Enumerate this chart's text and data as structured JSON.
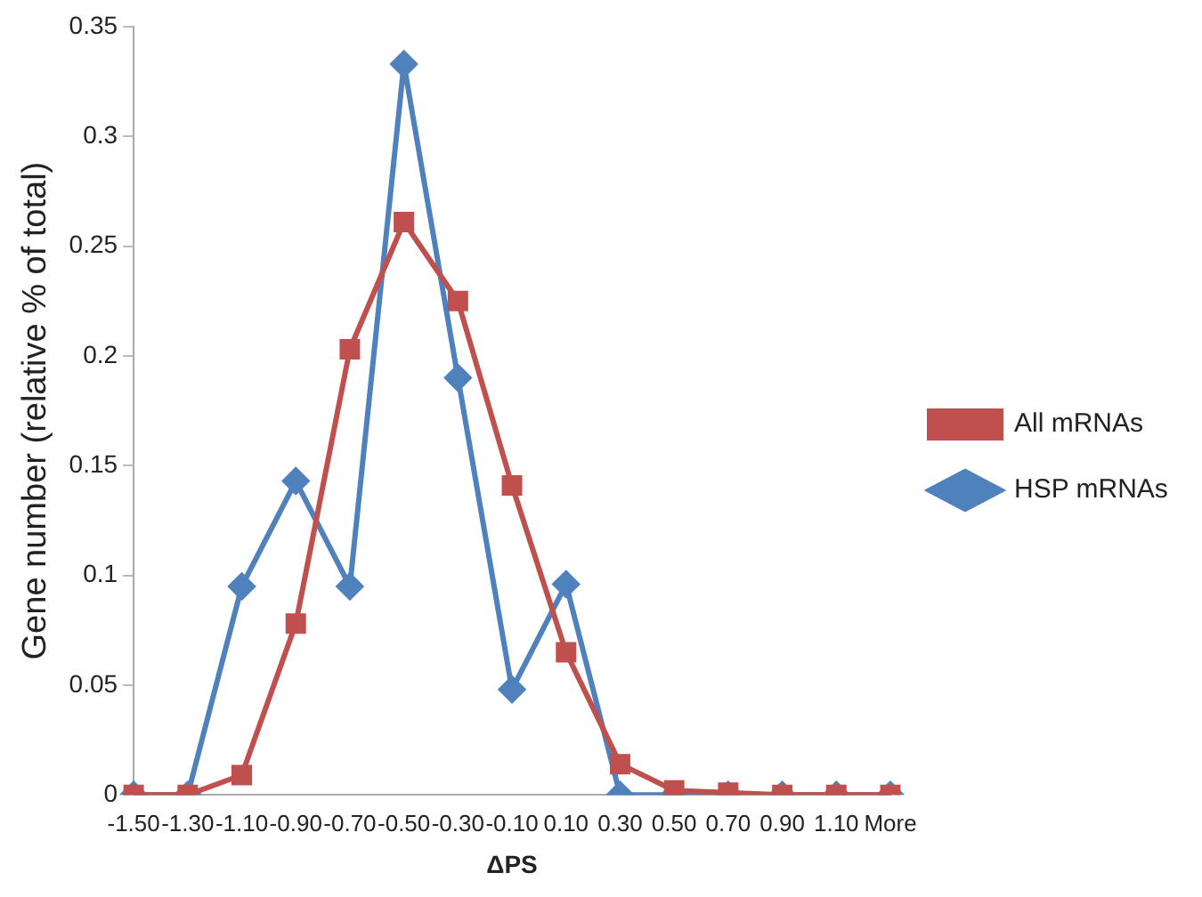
{
  "chart_data": {
    "type": "line",
    "xlabel": "ΔPS",
    "ylabel": "Gene number (relative % of total)",
    "categories": [
      "-1.50",
      "-1.30",
      "-1.10",
      "-0.90",
      "-0.70",
      "-0.50",
      "-0.30",
      "-0.10",
      "0.10",
      "0.30",
      "0.50",
      "0.70",
      "0.90",
      "1.10",
      "More"
    ],
    "series": [
      {
        "name": "All mRNAs",
        "color": "#c0504d",
        "marker": "square",
        "values": [
          0,
          0,
          0.009,
          0.078,
          0.203,
          0.261,
          0.225,
          0.141,
          0.065,
          0.014,
          0.002,
          0.001,
          0,
          0,
          0
        ]
      },
      {
        "name": "HSP mRNAs",
        "color": "#4f81bd",
        "marker": "diamond",
        "values": [
          0,
          0,
          0.095,
          0.143,
          0.095,
          0.333,
          0.19,
          0.048,
          0.096,
          0,
          0,
          0,
          0,
          0,
          0
        ]
      }
    ],
    "ylim": [
      0,
      0.35
    ],
    "yticks": [
      0,
      0.05,
      0.1,
      0.15,
      0.2,
      0.25,
      0.3,
      0.35
    ],
    "grid": false,
    "legend": "right"
  }
}
